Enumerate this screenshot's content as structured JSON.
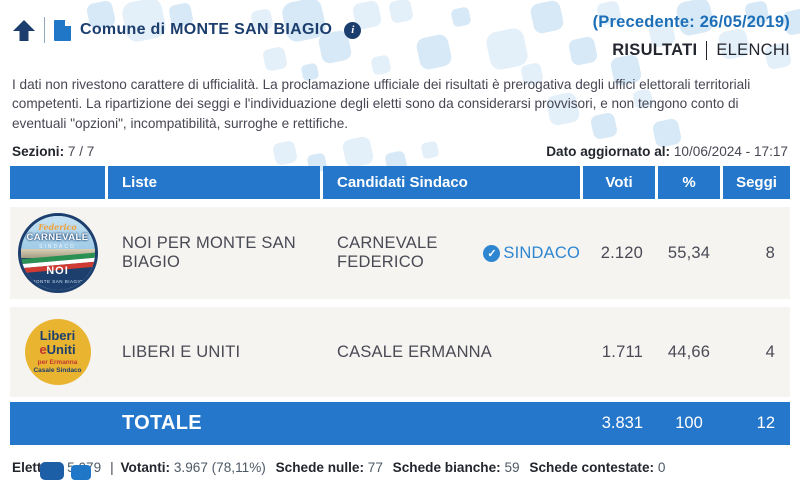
{
  "header": {
    "title": "Comune di MONTE SAN BIAGIO",
    "precedente": "(Precedente: 26/05/2019)",
    "tab_risultati": "RISULTATI",
    "tab_elenchi": "ELENCHI",
    "info_glyph": "i"
  },
  "disclaimer": "I dati non rivestono carattere di ufficialità. La proclamazione ufficiale dei risultati è prerogativa degli uffici elettorali territoriali competenti. La ripartizione dei seggi e l'individuazione degli eletti sono da considerarsi provvisori, e non tengono conto di eventuali \"opzioni\", incompatibilità, surroghe e rettifiche.",
  "status": {
    "sezioni_label": "Sezioni:",
    "sezioni_value": "7 / 7",
    "aggiornato_label": "Dato aggiornato al:",
    "aggiornato_value": "10/06/2024 - 17:17"
  },
  "table": {
    "headers": {
      "liste": "Liste",
      "candidati": "Candidati Sindaco",
      "voti": "Voti",
      "percent": "%",
      "seggi": "Seggi"
    },
    "rows": [
      {
        "lista": "NOI PER MONTE SAN BIAGIO",
        "candidato": "CARNEVALE FEDERICO",
        "badge": "SINDACO",
        "badge_check": "✓",
        "voti": "2.120",
        "percent": "55,34",
        "seggi": "8",
        "logo": {
          "top": "Federico",
          "name": "CARNEVALE",
          "role": "SINDACO",
          "noi": "NOI",
          "bottom": "MONTE SAN BIAGIO"
        }
      },
      {
        "lista": "LIBERI E UNITI",
        "candidato": "CASALE ERMANNA",
        "voti": "1.711",
        "percent": "44,66",
        "seggi": "4",
        "logo": {
          "liberi": "Liberi",
          "e": "e",
          "uniti": "Uniti",
          "per": "per Ermanna",
          "casale": "Casale Sindaco"
        }
      }
    ],
    "total": {
      "label": "TOTALE",
      "voti": "3.831",
      "percent": "100",
      "seggi": "12"
    }
  },
  "footer": {
    "separator": "|",
    "items": [
      {
        "label": "Elettori:",
        "value": "5.079"
      },
      {
        "label": "Votanti:",
        "value": "3.967 (78,11%)"
      },
      {
        "label": "Schede nulle:",
        "value": "77"
      },
      {
        "label": "Schede bianche:",
        "value": "59"
      },
      {
        "label": "Schede contestate:",
        "value": "0"
      }
    ]
  },
  "colors": {
    "accent_blue": "#2577cb",
    "dark_navy": "#1c3e6e",
    "link_blue": "#1d6fb8",
    "badge_blue": "#2e86d1",
    "row_bg": "#f5f4f1",
    "body_text": "#474754"
  }
}
